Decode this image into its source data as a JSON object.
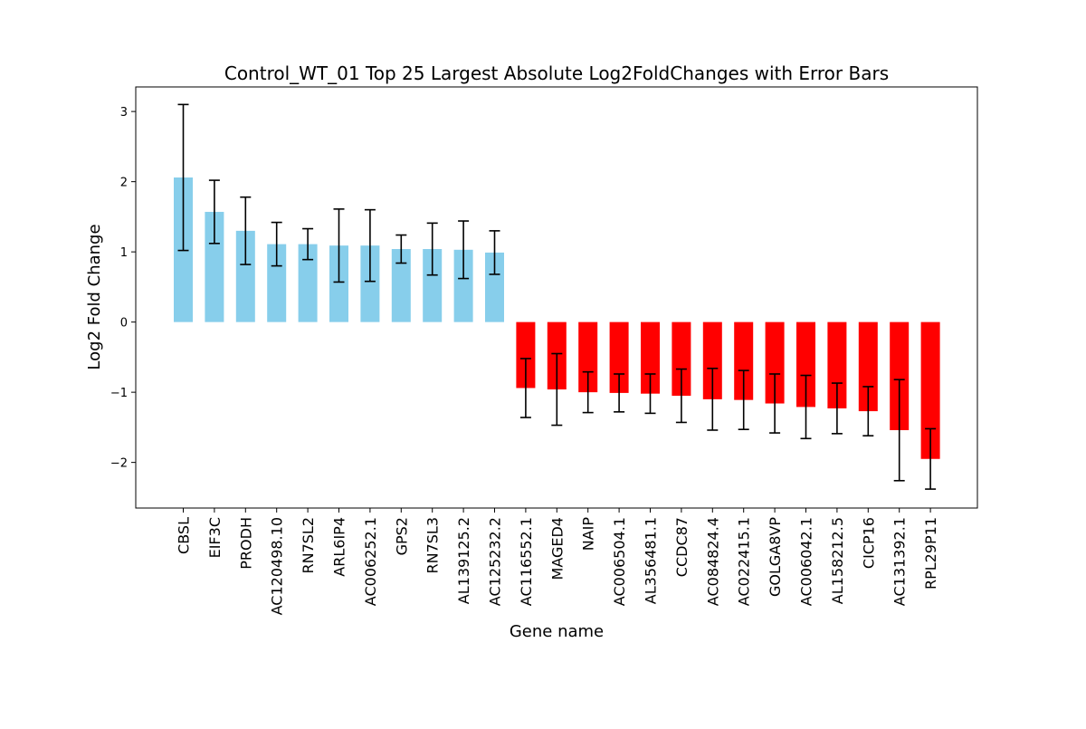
{
  "chart_data": {
    "type": "bar",
    "title": "Control_WT_01 Top 25 Largest Absolute Log2FoldChanges with Error Bars",
    "xlabel": "Gene name",
    "ylabel": "Log2 Fold Change",
    "ylim": [
      -2.65,
      3.35
    ],
    "yticks": [
      -2,
      -1,
      0,
      1,
      2,
      3
    ],
    "ytick_labels": [
      "−2",
      "−1",
      "0",
      "1",
      "2",
      "3"
    ],
    "grid": false,
    "legend": "none",
    "colors": {
      "positive": "#87ceeb",
      "negative": "#ff0000",
      "error_bar": "#000000"
    },
    "categories": [
      "CBSL",
      "EIF3C",
      "PRODH",
      "AC120498.10",
      "RN7SL2",
      "ARL6IP4",
      "AC006252.1",
      "GPS2",
      "RN7SL3",
      "AL139125.2",
      "AC125232.2",
      "AC116552.1",
      "MAGED4",
      "NAIP",
      "AC006504.1",
      "AL356481.1",
      "CCDC87",
      "AC084824.4",
      "AC022415.1",
      "GOLGA8VP",
      "AC006042.1",
      "AL158212.5",
      "CICP16",
      "AC131392.1",
      "RPL29P11"
    ],
    "values": [
      2.06,
      1.57,
      1.3,
      1.11,
      1.11,
      1.09,
      1.09,
      1.04,
      1.04,
      1.03,
      0.99,
      -0.94,
      -0.96,
      -1.0,
      -1.01,
      -1.02,
      -1.05,
      -1.1,
      -1.11,
      -1.16,
      -1.21,
      -1.23,
      -1.27,
      -1.54,
      -1.95
    ],
    "errors": [
      1.04,
      0.45,
      0.48,
      0.31,
      0.22,
      0.52,
      0.51,
      0.2,
      0.37,
      0.41,
      0.31,
      0.42,
      0.51,
      0.29,
      0.27,
      0.28,
      0.38,
      0.44,
      0.42,
      0.42,
      0.45,
      0.36,
      0.35,
      0.72,
      0.43
    ]
  }
}
